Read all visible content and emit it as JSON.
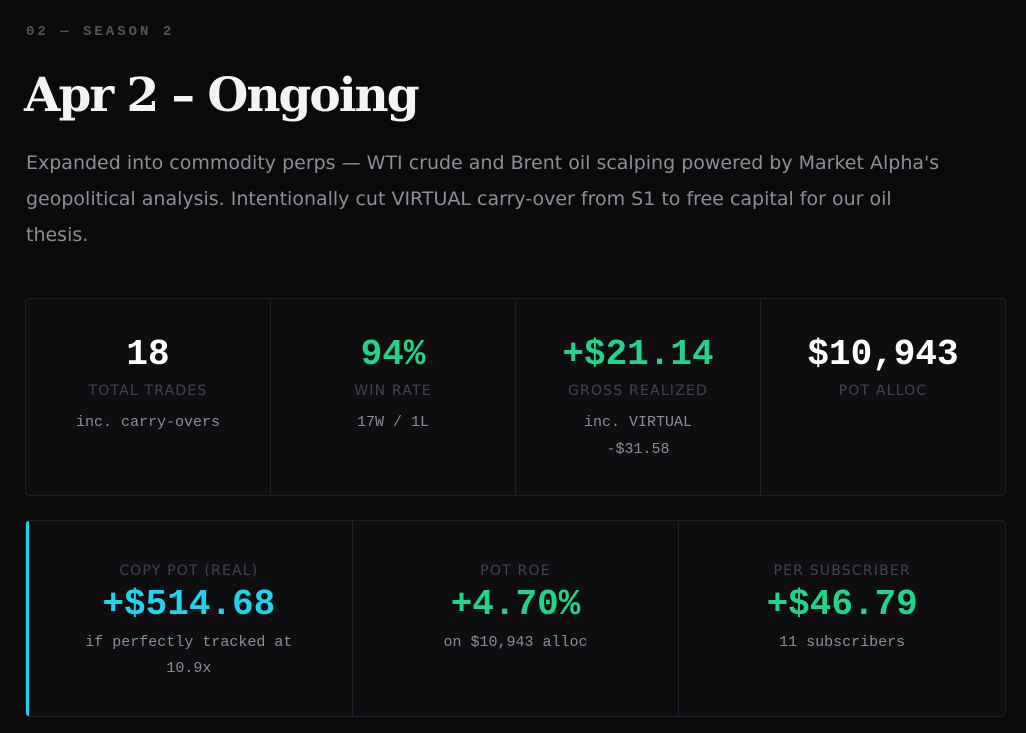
{
  "season": {
    "eyebrow": "02 — SEASON 2",
    "title": "Apr 2 – Ongoing",
    "description": "Expanded into commodity perps — WTI crude and Brent oil scalping powered by Market Alpha's geopolitical analysis. Intentionally cut VIRTUAL carry-over from S1 to free capital for our oil thesis."
  },
  "stats": [
    {
      "value": "18",
      "label": "TOTAL TRADES",
      "sub": "inc. carry-overs",
      "color": "#ffffff"
    },
    {
      "value": "94%",
      "label": "WIN RATE",
      "sub": "17W / 1L",
      "color": "#22d489"
    },
    {
      "value": "+$21.14",
      "label": "GROSS REALIZED",
      "sub": "inc. VIRTUAL -$31.58",
      "color": "#22d489"
    },
    {
      "value": "$10,943",
      "label": "POT ALLOC",
      "sub": "",
      "color": "#ffffff"
    }
  ],
  "pot": {
    "accent_color": "#22d3ee",
    "items": [
      {
        "label": "COPY POT (REAL)",
        "value": "+$514.68",
        "sub": "if perfectly tracked at 10.9x",
        "color": "#22d3ee"
      },
      {
        "label": "POT ROE",
        "value": "+4.70%",
        "sub": "on $10,943 alloc",
        "color": "#22d489"
      },
      {
        "label": "PER SUBSCRIBER",
        "value": "+$46.79",
        "sub": "11 subscribers",
        "color": "#22d489"
      }
    ]
  }
}
